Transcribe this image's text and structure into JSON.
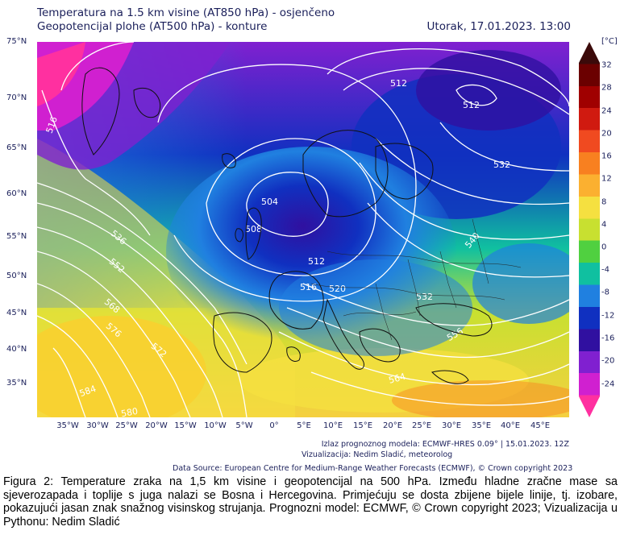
{
  "header": {
    "title_line1": "Temperatura na 1.5 km visine (AT850 hPa) - osjenčeno",
    "title_line2": "Geopotencijal plohe (AT500 hPa) - konture",
    "datetime": "Utorak, 17.01.2023. 13:00"
  },
  "map": {
    "lat_labels": [
      "75°N",
      "70°N",
      "65°N",
      "60°N",
      "55°N",
      "50°N",
      "45°N",
      "40°N",
      "35°N"
    ],
    "lon_labels": [
      "35°W",
      "30°W",
      "25°W",
      "20°W",
      "15°W",
      "10°W",
      "5°W",
      "0°",
      "5°E",
      "10°E",
      "15°E",
      "20°E",
      "25°E",
      "30°E",
      "35°E",
      "40°E",
      "45°E"
    ],
    "contour_labels": [
      "512",
      "512",
      "516",
      "504",
      "508",
      "512",
      "516",
      "520",
      "532",
      "536",
      "552",
      "568",
      "576",
      "572",
      "584",
      "580",
      "564",
      "556",
      "540",
      "532"
    ]
  },
  "colorbar": {
    "unit": "[°C]",
    "ticks": [
      "32",
      "28",
      "24",
      "20",
      "16",
      "12",
      "8",
      "4",
      "0",
      "-4",
      "-8",
      "-12",
      "-16",
      "-20",
      "-24"
    ],
    "colors": [
      "#3b0a0a",
      "#6b0000",
      "#a00000",
      "#d01a10",
      "#f04a20",
      "#f88020",
      "#fbb030",
      "#f5e040",
      "#c8e030",
      "#50d040",
      "#10c0a0",
      "#2080e0",
      "#1030c0",
      "#3010a0",
      "#8020d0",
      "#d020d0",
      "#ff30a0"
    ]
  },
  "footer": {
    "model_info": "Izlaz prognoznog modela: ECMWF-HRES 0.09° | 15.01.2023. 12Z",
    "author": "Vizualizacija: Nedim Sladić, meteorolog",
    "data_source": "Data Source: European Centre for Medium-Range Weather Forecasts (ECMWF), © Crown copyright 2023"
  },
  "caption": "Figura 2: Temperature zraka na 1,5 km visine i geopotencijal na 500 hPa. Između hladne zračne mase sa sjeverozapada i toplije s juga nalazi se Bosna i Hercegovina. Primjećuju se dosta zbijene bijele linije, tj. izobare, pokazujući jasan znak snažnog visinskog strujanja. Prognozni model: ECMWF, © Crown copyright 2023; Vizualizacija u Pythonu: Nedim Sladić"
}
